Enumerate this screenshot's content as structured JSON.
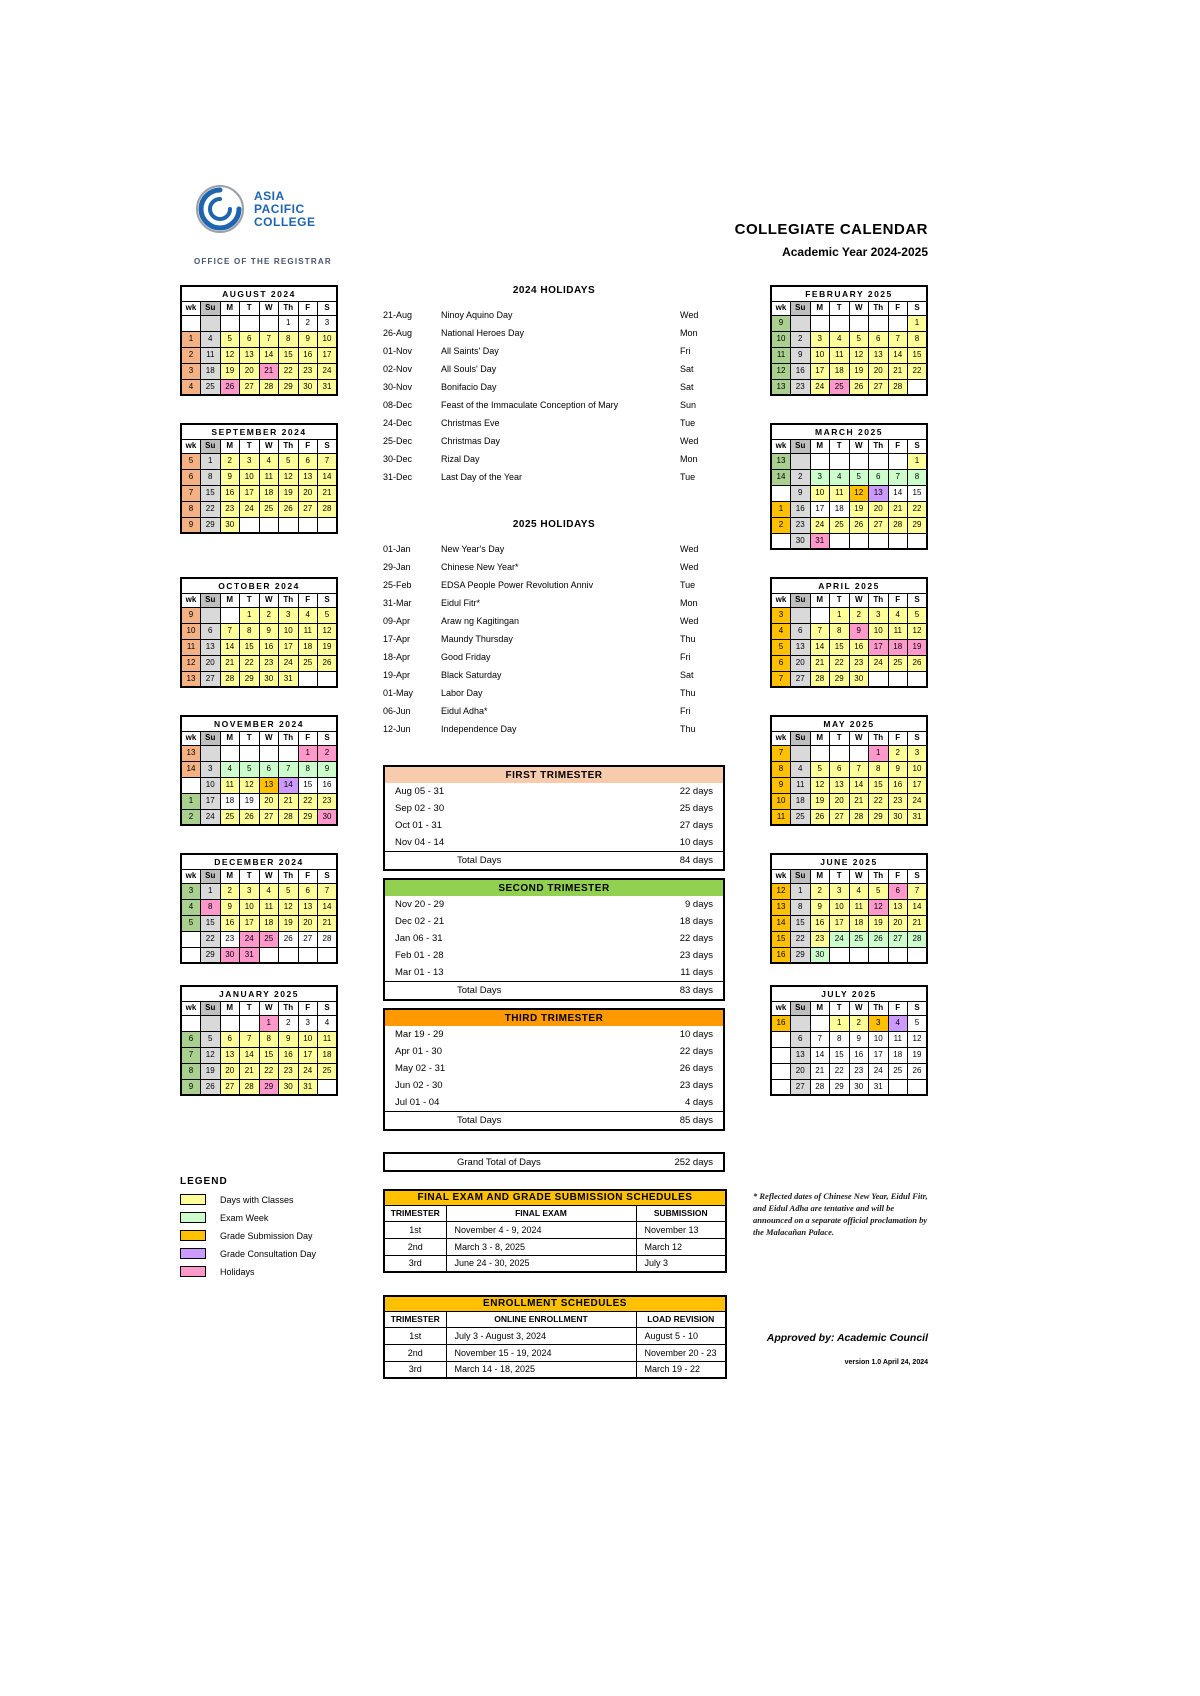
{
  "header": {
    "logo_lines": [
      "ASIA",
      "PACIFIC",
      "COLLEGE"
    ],
    "office": "OFFICE OF THE REGISTRAR",
    "title": "COLLEGIATE CALENDAR",
    "subtitle": "Academic Year 2024-2025"
  },
  "colors": {
    "y": "#FFFF99",
    "g": "#CCFFCC",
    "o": "#FFC000",
    "p": "#CC99FF",
    "h": "#FF99CC",
    "su": "#D9D9D9",
    "su_header": "#BFBFBF",
    "w1": "#F4B183",
    "w2": "#A9D08E",
    "w3": "#FFC000"
  },
  "calendar": {
    "day_headers": [
      "wk",
      "Su",
      "M",
      "T",
      "W",
      "Th",
      "F",
      "S"
    ],
    "months": [
      {
        "name": "AUGUST 2024",
        "weeks": [
          [
            "",
            "",
            "",
            "",
            "",
            "1",
            "2",
            "3"
          ],
          [
            "1:1",
            "4",
            "5:y",
            "6:y",
            "7:y",
            "8:y",
            "9:y",
            "10:y"
          ],
          [
            "2:1",
            "11",
            "12:y",
            "13:y",
            "14:y",
            "15:y",
            "16:y",
            "17:y"
          ],
          [
            "3:1",
            "18",
            "19:y",
            "20:y",
            "21:h",
            "22:y",
            "23:y",
            "24:y"
          ],
          [
            "4:1",
            "25",
            "26:h",
            "27:y",
            "28:y",
            "29:y",
            "30:y",
            "31:y"
          ]
        ]
      },
      {
        "name": "SEPTEMBER 2024",
        "weeks": [
          [
            "5:1",
            "1",
            "2:y",
            "3:y",
            "4:y",
            "5:y",
            "6:y",
            "7:y"
          ],
          [
            "6:1",
            "8",
            "9:y",
            "10:y",
            "11:y",
            "12:y",
            "13:y",
            "14:y"
          ],
          [
            "7:1",
            "15",
            "16:y",
            "17:y",
            "18:y",
            "19:y",
            "20:y",
            "21:y"
          ],
          [
            "8:1",
            "22",
            "23:y",
            "24:y",
            "25:y",
            "26:y",
            "27:y",
            "28:y"
          ],
          [
            "9:1",
            "29",
            "30:y",
            "",
            "",
            "",
            "",
            ""
          ]
        ]
      },
      {
        "name": "OCTOBER 2024",
        "weeks": [
          [
            "9:1",
            "",
            "",
            "1:y",
            "2:y",
            "3:y",
            "4:y",
            "5:y"
          ],
          [
            "10:1",
            "6",
            "7:y",
            "8:y",
            "9:y",
            "10:y",
            "11:y",
            "12:y"
          ],
          [
            "11:1",
            "13",
            "14:y",
            "15:y",
            "16:y",
            "17:y",
            "18:y",
            "19:y"
          ],
          [
            "12:1",
            "20",
            "21:y",
            "22:y",
            "23:y",
            "24:y",
            "25:y",
            "26:y"
          ],
          [
            "13:1",
            "27",
            "28:y",
            "29:y",
            "30:y",
            "31:y",
            "",
            ""
          ]
        ]
      },
      {
        "name": "NOVEMBER 2024",
        "weeks": [
          [
            "13:1",
            "",
            "",
            "",
            "",
            "",
            "1:h",
            "2:h"
          ],
          [
            "14:1",
            "3",
            "4:g",
            "5:g",
            "6:g",
            "7:g",
            "8:g",
            "9:g"
          ],
          [
            "",
            "10",
            "11:y",
            "12:y",
            "13:o",
            "14:p",
            "15",
            "16"
          ],
          [
            "1:2",
            "17",
            "18",
            "19",
            "20:y",
            "21:y",
            "22:y",
            "23:y"
          ],
          [
            "2:2",
            "24",
            "25:y",
            "26:y",
            "27:y",
            "28:y",
            "29:y",
            "30:h"
          ]
        ]
      },
      {
        "name": "DECEMBER 2024",
        "weeks": [
          [
            "3:2",
            "1",
            "2:y",
            "3:y",
            "4:y",
            "5:y",
            "6:y",
            "7:y"
          ],
          [
            "4:2",
            "8:h",
            "9:y",
            "10:y",
            "11:y",
            "12:y",
            "13:y",
            "14:y"
          ],
          [
            "5:2",
            "15",
            "16:y",
            "17:y",
            "18:y",
            "19:y",
            "20:y",
            "21:y"
          ],
          [
            "",
            "22",
            "23",
            "24:h",
            "25:h",
            "26",
            "27",
            "28"
          ],
          [
            "",
            "29",
            "30:h",
            "31:h",
            "",
            "",
            "",
            ""
          ]
        ]
      },
      {
        "name": "JANUARY 2025",
        "weeks": [
          [
            "",
            "",
            "",
            "",
            "1:h",
            "2",
            "3",
            "4"
          ],
          [
            "6:2",
            "5",
            "6:y",
            "7:y",
            "8:y",
            "9:y",
            "10:y",
            "11:y"
          ],
          [
            "7:2",
            "12",
            "13:y",
            "14:y",
            "15:y",
            "16:y",
            "17:y",
            "18:y"
          ],
          [
            "8:2",
            "19",
            "20:y",
            "21:y",
            "22:y",
            "23:y",
            "24:y",
            "25:y"
          ],
          [
            "9:2",
            "26",
            "27:y",
            "28:y",
            "29:h",
            "30:y",
            "31:y",
            ""
          ]
        ]
      },
      {
        "name": "FEBRUARY 2025",
        "weeks": [
          [
            "9:2",
            "",
            "",
            "",
            "",
            "",
            "",
            "1:y"
          ],
          [
            "10:2",
            "2",
            "3:y",
            "4:y",
            "5:y",
            "6:y",
            "7:y",
            "8:y"
          ],
          [
            "11:2",
            "9",
            "10:y",
            "11:y",
            "12:y",
            "13:y",
            "14:y",
            "15:y"
          ],
          [
            "12:2",
            "16",
            "17:y",
            "18:y",
            "19:y",
            "20:y",
            "21:y",
            "22:y"
          ],
          [
            "13:2",
            "23",
            "24:y",
            "25:h",
            "26:y",
            "27:y",
            "28:y",
            ""
          ]
        ]
      },
      {
        "name": "MARCH 2025",
        "weeks": [
          [
            "13:2",
            "",
            "",
            "",
            "",
            "",
            "",
            "1:y"
          ],
          [
            "14:2",
            "2",
            "3:g",
            "4:g",
            "5:g",
            "6:g",
            "7:g",
            "8:g"
          ],
          [
            "",
            "9",
            "10:y",
            "11:y",
            "12:o",
            "13:p",
            "14",
            "15"
          ],
          [
            "1:3",
            "16",
            "17",
            "18",
            "19:y",
            "20:y",
            "21:y",
            "22:y"
          ],
          [
            "2:3",
            "23",
            "24:y",
            "25:y",
            "26:y",
            "27:y",
            "28:y",
            "29:y"
          ],
          [
            "",
            "30",
            "31:h",
            "",
            "",
            "",
            "",
            ""
          ]
        ]
      },
      {
        "name": "APRIL 2025",
        "weeks": [
          [
            "3:3",
            "",
            "",
            "1:y",
            "2:y",
            "3:y",
            "4:y",
            "5:y"
          ],
          [
            "4:3",
            "6",
            "7:y",
            "8:y",
            "9:h",
            "10:y",
            "11:y",
            "12:y"
          ],
          [
            "5:3",
            "13",
            "14:y",
            "15:y",
            "16:y",
            "17:h",
            "18:h",
            "19:h"
          ],
          [
            "6:3",
            "20",
            "21:y",
            "22:y",
            "23:y",
            "24:y",
            "25:y",
            "26:y"
          ],
          [
            "7:3",
            "27",
            "28:y",
            "29:y",
            "30:y",
            "",
            "",
            ""
          ]
        ]
      },
      {
        "name": "MAY 2025",
        "weeks": [
          [
            "7:3",
            "",
            "",
            "",
            "",
            "1:h",
            "2:y",
            "3:y"
          ],
          [
            "8:3",
            "4",
            "5:y",
            "6:y",
            "7:y",
            "8:y",
            "9:y",
            "10:y"
          ],
          [
            "9:3",
            "11",
            "12:y",
            "13:y",
            "14:y",
            "15:y",
            "16:y",
            "17:y"
          ],
          [
            "10:3",
            "18",
            "19:y",
            "20:y",
            "21:y",
            "22:y",
            "23:y",
            "24:y"
          ],
          [
            "11:3",
            "25",
            "26:y",
            "27:y",
            "28:y",
            "29:y",
            "30:y",
            "31:y"
          ]
        ]
      },
      {
        "name": "JUNE 2025",
        "weeks": [
          [
            "12:3",
            "1",
            "2:y",
            "3:y",
            "4:y",
            "5:y",
            "6:h",
            "7:y"
          ],
          [
            "13:3",
            "8",
            "9:y",
            "10:y",
            "11:y",
            "12:h",
            "13:y",
            "14:y"
          ],
          [
            "14:3",
            "15",
            "16:y",
            "17:y",
            "18:y",
            "19:y",
            "20:y",
            "21:y"
          ],
          [
            "15:3",
            "22",
            "23:y",
            "24:g",
            "25:g",
            "26:g",
            "27:g",
            "28:g"
          ],
          [
            "16:3",
            "29",
            "30:g",
            "",
            "",
            "",
            "",
            ""
          ]
        ]
      },
      {
        "name": "JULY 2025",
        "weeks": [
          [
            "16:3",
            "",
            "",
            "1:y",
            "2:y",
            "3:o",
            "4:p",
            "5"
          ],
          [
            "",
            "6",
            "7",
            "8",
            "9",
            "10",
            "11",
            "12"
          ],
          [
            "",
            "13",
            "14",
            "15",
            "16",
            "17",
            "18",
            "19"
          ],
          [
            "",
            "20",
            "21",
            "22",
            "23",
            "24",
            "25",
            "26"
          ],
          [
            "",
            "27",
            "28",
            "29",
            "30",
            "31",
            "",
            ""
          ]
        ]
      }
    ]
  },
  "holidays_2024": {
    "title": "2024 HOLIDAYS",
    "rows": [
      [
        "21-Aug",
        "Ninoy Aquino Day",
        "Wed"
      ],
      [
        "26-Aug",
        "National Heroes Day",
        "Mon"
      ],
      [
        "01-Nov",
        "All Saints' Day",
        "Fri"
      ],
      [
        "02-Nov",
        "All Souls' Day",
        "Sat"
      ],
      [
        "30-Nov",
        "Bonifacio Day",
        "Sat"
      ],
      [
        "08-Dec",
        "Feast of the Immaculate Conception of Mary",
        "Sun"
      ],
      [
        "24-Dec",
        "Christmas Eve",
        "Tue"
      ],
      [
        "25-Dec",
        "Christmas Day",
        "Wed"
      ],
      [
        "30-Dec",
        "Rizal Day",
        "Mon"
      ],
      [
        "31-Dec",
        "Last Day of the Year",
        "Tue"
      ]
    ]
  },
  "holidays_2025": {
    "title": "2025 HOLIDAYS",
    "rows": [
      [
        "01-Jan",
        "New Year's Day",
        "Wed"
      ],
      [
        "29-Jan",
        "Chinese New Year*",
        "Wed"
      ],
      [
        "25-Feb",
        "EDSA People Power Revolution Anniv",
        "Tue"
      ],
      [
        "31-Mar",
        "Eidul Fitr*",
        "Mon"
      ],
      [
        "09-Apr",
        "Araw ng Kagitingan",
        "Wed"
      ],
      [
        "17-Apr",
        "Maundy Thursday",
        "Thu"
      ],
      [
        "18-Apr",
        "Good Friday",
        "Fri"
      ],
      [
        "19-Apr",
        "Black Saturday",
        "Sat"
      ],
      [
        "01-May",
        "Labor Day",
        "Thu"
      ],
      [
        "06-Jun",
        "Eidul Adha*",
        "Fri"
      ],
      [
        "12-Jun",
        "Independence Day",
        "Thu"
      ]
    ]
  },
  "trimesters": [
    {
      "title": "FIRST TRIMESTER",
      "color": "#F8CBAD",
      "rows": [
        [
          "Aug 05 - 31",
          "22 days"
        ],
        [
          "Sep 02 - 30",
          "25 days"
        ],
        [
          "Oct 01 - 31",
          "27 days"
        ],
        [
          "Nov 04 - 14",
          "10 days"
        ]
      ],
      "total": [
        "Total Days",
        "84 days"
      ]
    },
    {
      "title": "SECOND TRIMESTER",
      "color": "#92D050",
      "rows": [
        [
          "Nov 20 - 29",
          "9 days"
        ],
        [
          "Dec 02 - 21",
          "18 days"
        ],
        [
          "Jan 06 - 31",
          "22 days"
        ],
        [
          "Feb 01 - 28",
          "23 days"
        ],
        [
          "Mar 01 - 13",
          "11 days"
        ]
      ],
      "total": [
        "Total Days",
        "83 days"
      ]
    },
    {
      "title": "THIRD TRIMESTER",
      "color": "#FF9900",
      "rows": [
        [
          "Mar 19 - 29",
          "10 days"
        ],
        [
          "Apr 01 - 30",
          "22 days"
        ],
        [
          "May 02 - 31",
          "26 days"
        ],
        [
          "Jun 02 - 30",
          "23 days"
        ],
        [
          "Jul 01 - 04",
          "4 days"
        ]
      ],
      "total": [
        "Total Days",
        "85 days"
      ]
    }
  ],
  "grand_total": {
    "label": "Grand Total of Days",
    "value": "252 days"
  },
  "schedules": [
    {
      "id": "sched-final",
      "title": "FINAL EXAM AND GRADE SUBMISSION SCHEDULES",
      "color": "#FFC000",
      "columns": [
        "TRIMESTER",
        "FINAL EXAM",
        "SUBMISSION"
      ],
      "rows": [
        [
          "1st",
          "November 4 - 9, 2024",
          "November 13"
        ],
        [
          "2nd",
          "March 3 - 8, 2025",
          "March 12"
        ],
        [
          "3rd",
          "June 24 - 30, 2025",
          "July 3"
        ]
      ]
    },
    {
      "id": "sched-enroll",
      "title": "ENROLLMENT SCHEDULES",
      "color": "#FFC000",
      "columns": [
        "TRIMESTER",
        "ONLINE ENROLLMENT",
        "LOAD REVISION"
      ],
      "rows": [
        [
          "1st",
          "July 3 - August 3, 2024",
          "August 5 - 10"
        ],
        [
          "2nd",
          "November 15 - 19, 2024",
          "November 20 - 23"
        ],
        [
          "3rd",
          "March 14 - 18, 2025",
          "March 19 - 22"
        ]
      ]
    }
  ],
  "legend": {
    "title": "LEGEND",
    "items": [
      {
        "label": "Days with Classes",
        "color": "#FFFF99"
      },
      {
        "label": "Exam Week",
        "color": "#CCFFCC"
      },
      {
        "label": "Grade Submission Day",
        "color": "#FFC000"
      },
      {
        "label": "Grade Consultation Day",
        "color": "#CC99FF"
      },
      {
        "label": "Holidays",
        "color": "#FF99CC"
      }
    ]
  },
  "notes": {
    "footnote": "* Reflected dates of Chinese New Year, Eidul Fitr, and Eidul Adha are tentative and will be announced on a separate official proclamation by the Malacañan Palace.",
    "approved": "Approved by: Academic Council",
    "version": "version 1.0 April 24, 2024"
  }
}
